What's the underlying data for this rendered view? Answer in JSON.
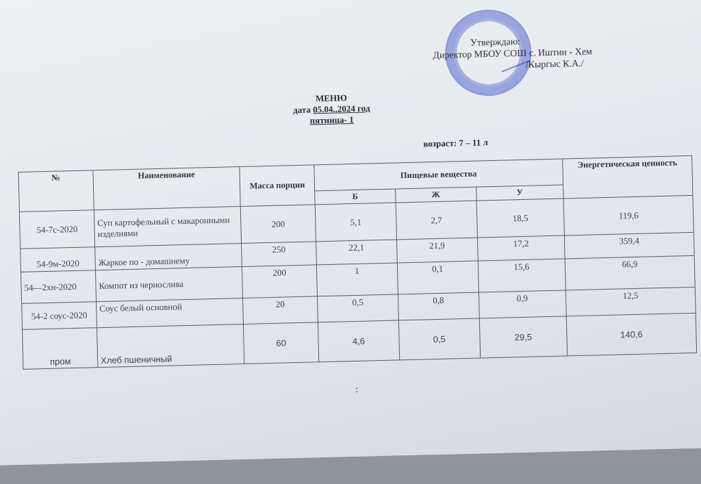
{
  "approval": {
    "line1": "Утверждаю:",
    "line2": "Директор МБОУ СОШ с. Иштии - Хем",
    "line3": "/Кыргыс К.А./"
  },
  "stamp_icon": "school-seal-stamp",
  "header": {
    "title": "МЕНЮ",
    "date_prefix": "дата ",
    "date": "05.04..2024 год",
    "day": "пятница- 1",
    "age": "возраст: 7 – 11 л"
  },
  "table": {
    "headers": {
      "num": "№",
      "name": "Наименование",
      "mass": "Масса порции",
      "nutrients": "Пищевые вещества",
      "energy": "Энергетическая ценность",
      "b": "Б",
      "zh": "Ж",
      "u": "У"
    },
    "rows": [
      {
        "code": "54-7с-2020",
        "name": "Суп   картофельный с макаронными изделиями",
        "mass": "200",
        "b": "5,1",
        "zh": "2,7",
        "u": "18,5",
        "energy": "119,6"
      },
      {
        "code": "54-9м-2020",
        "name": "Жаркое по  - домашнему",
        "mass": "250",
        "b": "22,1",
        "zh": "21,9",
        "u": "17,2",
        "energy": "359,4"
      },
      {
        "code": "54—2хн-2020",
        "name": "Компот из чернослива",
        "mass": "200",
        "b": "1",
        "zh": "0,1",
        "u": "15,6",
        "energy": "66,9"
      },
      {
        "code": "54-2 соус-2020",
        "name": "Соус белый основной",
        "mass": "20",
        "b": "0,5",
        "zh": "0,8",
        "u": "0,9",
        "energy": "12,5"
      },
      {
        "code": "пром",
        "name": "Хлеб пшеничный",
        "mass": "60",
        "b": "4,6",
        "zh": "0,5",
        "u": "29,5",
        "energy": "140,6"
      }
    ]
  },
  "footer": {
    "colon": ":"
  }
}
